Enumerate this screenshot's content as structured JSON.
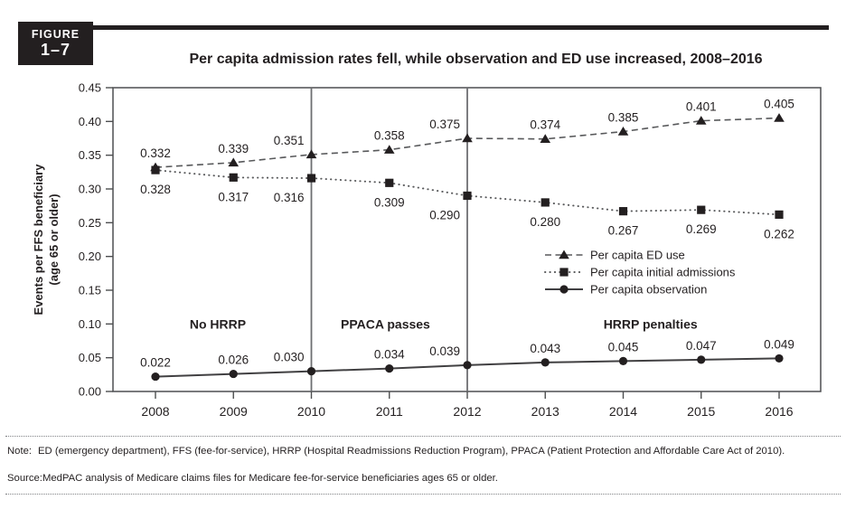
{
  "header": {
    "figure_kicker": "FIGURE",
    "figure_number": "1–7",
    "title": "Per capita admission rates fell, while observation and ED use increased, 2008–2016"
  },
  "chart_data": {
    "type": "line",
    "x": [
      2008,
      2009,
      2010,
      2011,
      2012,
      2013,
      2014,
      2015,
      2016
    ],
    "series": [
      {
        "name": "Per capita ED use",
        "marker": "triangle",
        "line_style": "dashed",
        "label_side": "above",
        "values": [
          0.332,
          0.339,
          0.351,
          0.358,
          0.375,
          0.374,
          0.385,
          0.401,
          0.405
        ]
      },
      {
        "name": "Per capita initial admissions",
        "marker": "square",
        "line_style": "dotted",
        "label_side": "below",
        "values": [
          0.328,
          0.317,
          0.316,
          0.309,
          0.29,
          0.28,
          0.267,
          0.269,
          0.262
        ]
      },
      {
        "name": "Per capita observation",
        "marker": "circle",
        "line_style": "solid",
        "label_side": "above",
        "values": [
          0.022,
          0.026,
          0.03,
          0.034,
          0.039,
          0.043,
          0.045,
          0.047,
          0.049
        ]
      }
    ],
    "title": "Per capita admission rates fell, while observation and ED use increased, 2008–2016",
    "xlabel": "",
    "ylabel_line1": "Events per FFS beneficiary",
    "ylabel_line2": "(age 65 or older)",
    "ylim": [
      0,
      0.45
    ],
    "ytick_step": 0.05,
    "grid": false,
    "legend_position": "inside-right",
    "reference_lines_x": [
      2010,
      2012
    ],
    "annotations": [
      {
        "text": "No HRRP",
        "x": 2008.8,
        "y": 0.1
      },
      {
        "text": "PPACA passes",
        "x": 2010.95,
        "y": 0.1
      },
      {
        "text": "HRRP penalties",
        "x": 2014.35,
        "y": 0.1
      }
    ]
  },
  "footer": {
    "note_label": "Note:",
    "note_text": "ED (emergency department), FFS (fee-for-service), HRRP (Hospital Readmissions Reduction Program), PPACA (Patient Protection and Affordable Care Act of 2010).",
    "source_label": "Source:",
    "source_text": "MedPAC analysis of Medicare claims files for Medicare fee-for-service beneficiaries ages 65 or older."
  },
  "colors": {
    "ink": "#231f20",
    "line_gray": "#58595b",
    "frame_gray": "#4d4e50",
    "reference_gray": "#6d6e71",
    "solid_line": "#414042"
  }
}
